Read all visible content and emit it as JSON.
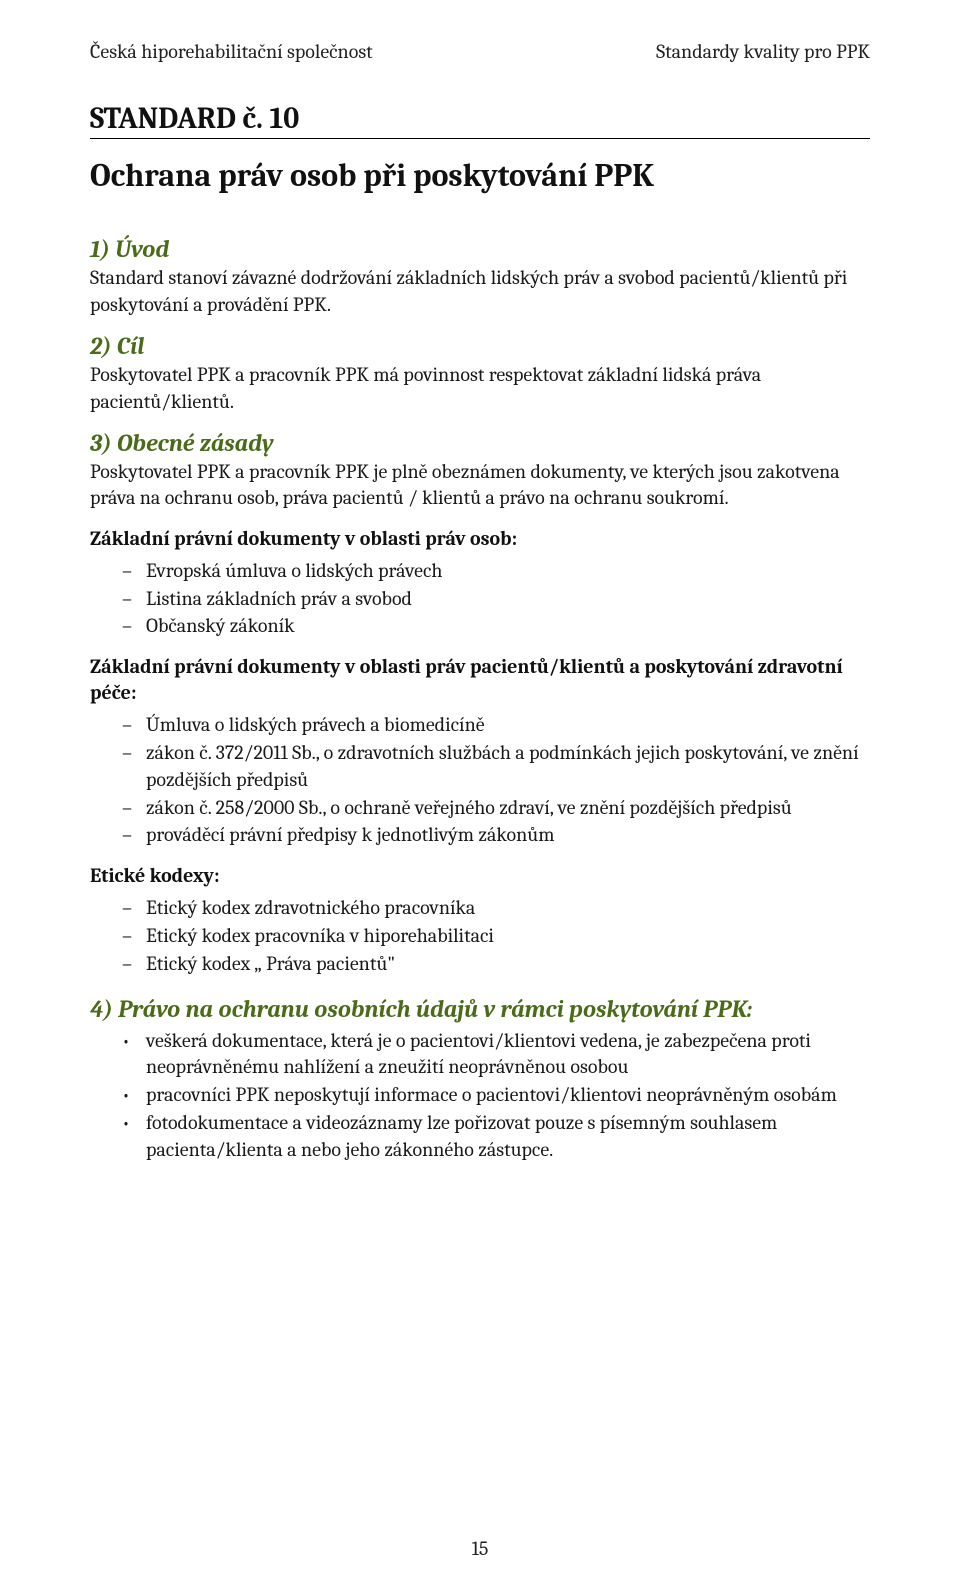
{
  "colors": {
    "text": "#1a1a1a",
    "heading_accent": "#4a6b18",
    "rule": "#000000",
    "background": "#ffffff"
  },
  "typography": {
    "body_fontsize_pt": 15,
    "section_head_fontsize_pt": 18,
    "title_fontsize_pt": 24,
    "font_family": "Cambria, Georgia, serif"
  },
  "header": {
    "left": "Česká hiporehabilitační společnost",
    "right": "Standardy kvality pro PPK"
  },
  "standard_label": "STANDARD č. 10",
  "title": "Ochrana práv osob při poskytování PPK",
  "s1": {
    "head": "1) Úvod",
    "body": "Standard stanoví závazné dodržování základních lidských práv a svobod pacientů/klientů při poskytování a provádění PPK."
  },
  "s2": {
    "head": "2) Cíl",
    "body": "Poskytovatel PPK a pracovník PPK má povinnost respektovat základní lidská práva pacientů/klientů."
  },
  "s3": {
    "head": "3) Obecné zásady",
    "body": "Poskytovatel PPK a pracovník PPK je plně obeznámen dokumenty, ve kterých jsou zakotvena práva na ochranu osob, práva pacientů / klientů a právo na ochranu soukromí."
  },
  "docs_personal": {
    "head": "Základní právní dokumenty v oblasti práv osob:",
    "items": [
      "Evropská úmluva o lidských právech",
      "Listina základních práv a svobod",
      "Občanský zákoník"
    ]
  },
  "docs_patients": {
    "head": "Základní právní dokumenty v oblasti práv pacientů/klientů a poskytování zdravotní péče:",
    "items": [
      "Úmluva o lidských právech a biomedicíně",
      "zákon č. 372/2011 Sb., o zdravotních službách a podmínkách jejich poskytování, ve znění pozdějších předpisů",
      "zákon č. 258/2000 Sb., o ochraně veřejného zdraví, ve znění pozdějších předpisů",
      "prováděcí právní předpisy k jednotlivým zákonům"
    ]
  },
  "ethics": {
    "head": "Etické kodexy:",
    "items": [
      "Etický kodex zdravotnického pracovníka",
      "Etický kodex pracovníka v hiporehabilitaci",
      "Etický kodex „ Práva pacientů\""
    ]
  },
  "s4": {
    "head": "4) Právo na ochranu osobních údajů v rámci poskytování PPK:",
    "items": [
      "veškerá dokumentace, která je o pacientovi/klientovi vedena, je zabezpečena proti neoprávněnému nahlížení a zneužití neoprávněnou osobou",
      "pracovníci PPK neposkytují informace o pacientovi/klientovi neoprávněným osobám",
      "fotodokumentace a videozáznamy lze pořizovat pouze s písemným souhlasem pacienta/klienta a nebo jeho zákonného zástupce."
    ]
  },
  "page_number": "15"
}
